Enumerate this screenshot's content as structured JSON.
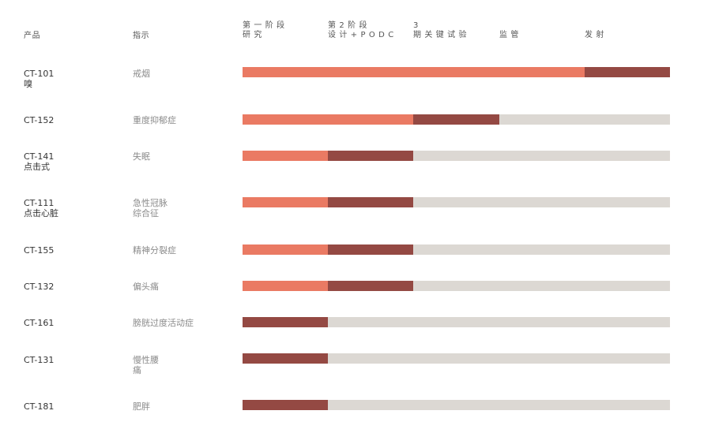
{
  "colors": {
    "completed": "#EA7A63",
    "current": "#944943",
    "track": "#DCD8D3"
  },
  "header": {
    "product_label": "产品",
    "indication_label": "指示",
    "phases": [
      {
        "line1": "第 一 阶 段",
        "line2": "研 究"
      },
      {
        "line1": "第 2 阶 段",
        "line2": "设 计 + P O D C"
      },
      {
        "line1": "3",
        "line2": "期 关 键 试 验"
      },
      {
        "line1": "",
        "line2": "监 管"
      },
      {
        "line1": "",
        "line2": "发 射"
      }
    ]
  },
  "rows": [
    {
      "product_code": "CT-101",
      "product_name": "嗅",
      "indication": "戒烟",
      "completed_phases": 4,
      "current_phases": 1
    },
    {
      "product_code": "CT-152",
      "product_name": "",
      "indication": "重度抑郁症",
      "completed_phases": 2,
      "current_phases": 1
    },
    {
      "product_code": "CT-141",
      "product_name": "点击式",
      "indication": "失眠",
      "completed_phases": 1,
      "current_phases": 1
    },
    {
      "product_code": "CT-111",
      "product_name": "点击心脏",
      "indication": "急性冠脉\n综合征",
      "completed_phases": 1,
      "current_phases": 1
    },
    {
      "product_code": "CT-155",
      "product_name": "",
      "indication": "精神分裂症",
      "completed_phases": 1,
      "current_phases": 1
    },
    {
      "product_code": "CT-132",
      "product_name": "",
      "indication": "偏头痛",
      "completed_phases": 1,
      "current_phases": 1
    },
    {
      "product_code": "CT-161",
      "product_name": "",
      "indication": "膀胱过度活动症",
      "completed_phases": 0,
      "current_phases": 1
    },
    {
      "product_code": "CT-131",
      "product_name": "",
      "indication": "慢性腰\n痛",
      "completed_phases": 0,
      "current_phases": 1
    },
    {
      "product_code": "CT-181",
      "product_name": "",
      "indication": "肥胖",
      "completed_phases": 0,
      "current_phases": 1
    }
  ]
}
